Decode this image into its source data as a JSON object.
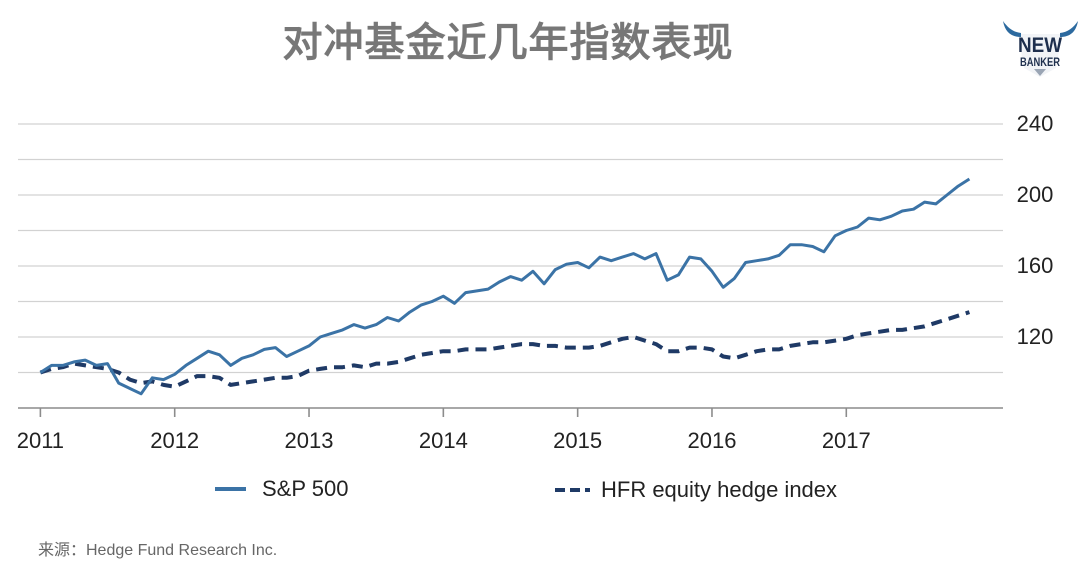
{
  "chart_data": {
    "type": "line",
    "title": "对冲基金近几年指数表现",
    "xlabel": "",
    "ylabel": "",
    "x_ticks": [
      "2011",
      "2012",
      "2013",
      "2014",
      "2015",
      "2016",
      "2017"
    ],
    "y_ticks": [
      120,
      160,
      200,
      240
    ],
    "xlim": [
      "2010-11",
      "2018-03"
    ],
    "ylim": [
      80,
      240
    ],
    "grid": true,
    "grid_step": 20,
    "legend": "bottom",
    "x": [
      "2011-01",
      "2011-02",
      "2011-03",
      "2011-04",
      "2011-05",
      "2011-06",
      "2011-07",
      "2011-08",
      "2011-09",
      "2011-10",
      "2011-11",
      "2011-12",
      "2012-01",
      "2012-02",
      "2012-03",
      "2012-04",
      "2012-05",
      "2012-06",
      "2012-07",
      "2012-08",
      "2012-09",
      "2012-10",
      "2012-11",
      "2012-12",
      "2013-01",
      "2013-02",
      "2013-03",
      "2013-04",
      "2013-05",
      "2013-06",
      "2013-07",
      "2013-08",
      "2013-09",
      "2013-10",
      "2013-11",
      "2013-12",
      "2014-01",
      "2014-02",
      "2014-03",
      "2014-04",
      "2014-05",
      "2014-06",
      "2014-07",
      "2014-08",
      "2014-09",
      "2014-10",
      "2014-11",
      "2014-12",
      "2015-01",
      "2015-02",
      "2015-03",
      "2015-04",
      "2015-05",
      "2015-06",
      "2015-07",
      "2015-08",
      "2015-09",
      "2015-10",
      "2015-11",
      "2015-12",
      "2016-01",
      "2016-02",
      "2016-03",
      "2016-04",
      "2016-05",
      "2016-06",
      "2016-07",
      "2016-08",
      "2016-09",
      "2016-10",
      "2016-11",
      "2016-12",
      "2017-01",
      "2017-02",
      "2017-03",
      "2017-04",
      "2017-05",
      "2017-06",
      "2017-07",
      "2017-08",
      "2017-09",
      "2017-10",
      "2017-11",
      "2017-12"
    ],
    "series": [
      {
        "name": "S&P 500",
        "color": "#3b73a6",
        "dashed": false,
        "values": [
          100,
          104,
          104,
          106,
          107,
          104,
          105,
          94,
          91,
          88,
          97,
          96,
          99,
          104,
          108,
          112,
          110,
          104,
          108,
          110,
          113,
          114,
          109,
          112,
          115,
          120,
          122,
          124,
          127,
          125,
          127,
          131,
          129,
          134,
          138,
          140,
          143,
          139,
          145,
          146,
          147,
          151,
          154,
          152,
          157,
          150,
          158,
          161,
          162,
          159,
          165,
          163,
          165,
          167,
          164,
          167,
          152,
          155,
          165,
          164,
          157,
          148,
          153,
          162,
          163,
          164,
          166,
          172,
          172,
          171,
          168,
          177,
          180,
          182,
          187,
          186,
          188,
          191,
          192,
          196,
          195,
          200,
          205,
          209
        ]
      },
      {
        "name": "HFR equity hedge index",
        "color": "#1f3a66",
        "dashed": true,
        "values": [
          100,
          102,
          103,
          105,
          104,
          103,
          102,
          100,
          96,
          94,
          95,
          93,
          92,
          95,
          98,
          98,
          97,
          93,
          94,
          95,
          96,
          97,
          97,
          98,
          101,
          102,
          103,
          103,
          104,
          103,
          105,
          105,
          106,
          108,
          110,
          111,
          112,
          112,
          113,
          113,
          113,
          114,
          115,
          116,
          116,
          115,
          115,
          114,
          114,
          114,
          115,
          117,
          119,
          120,
          118,
          116,
          112,
          112,
          114,
          114,
          113,
          109,
          108,
          110,
          112,
          113,
          113,
          115,
          116,
          117,
          117,
          118,
          119,
          121,
          122,
          123,
          124,
          124,
          125,
          126,
          128,
          130,
          132,
          134
        ]
      }
    ]
  },
  "logo": {
    "line1": "NEW",
    "line2": "BANKER"
  },
  "source": "来源：Hedge Fund Research Inc.",
  "colors": {
    "title": "#777777",
    "grid": "#d2d2d2",
    "axis": "#8c8c8c",
    "logo_text": "#1e2f4d",
    "logo_horns": "#2c6a9f",
    "logo_face": "#f2f4f7",
    "logo_tip": "#9aa5b4"
  }
}
